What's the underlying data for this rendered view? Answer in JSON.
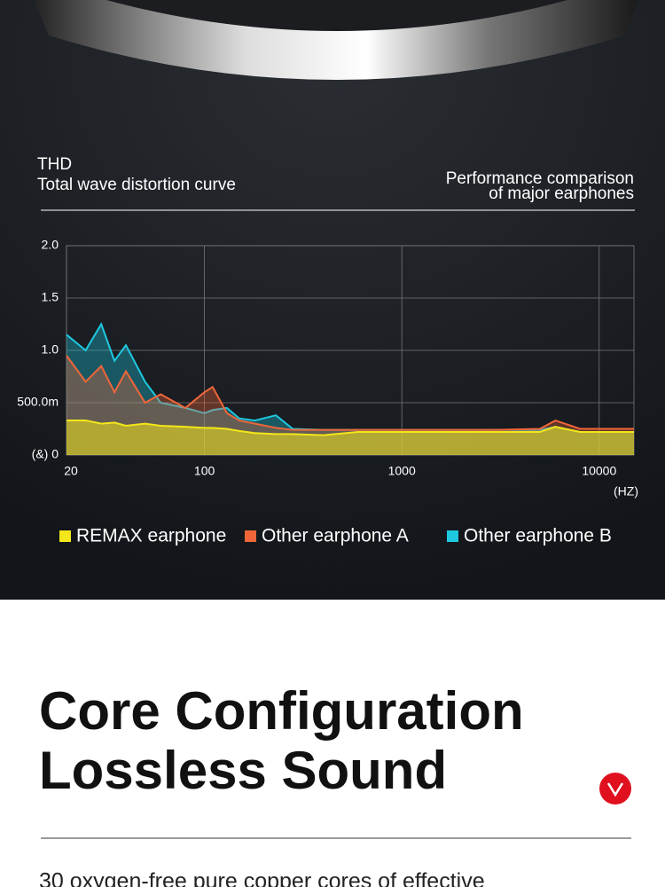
{
  "header": {
    "label": "THD",
    "title": "Total wave distortion curve",
    "note_line1": "Performance comparison",
    "note_line2": "of major earphones"
  },
  "chart_data": {
    "type": "line",
    "area": true,
    "xscale": "log",
    "grid": true,
    "xlim": [
      20,
      15000
    ],
    "ylim": [
      0,
      2
    ],
    "xticks": [
      20,
      100,
      1000,
      10000
    ],
    "yticks": [
      {
        "value": 0,
        "label": "(&) 0"
      },
      {
        "value": 0.5,
        "label": "500.0m"
      },
      {
        "value": 1,
        "label": "1.0"
      },
      1.5,
      {
        "value": 2,
        "label": "2.0"
      }
    ],
    "x_label": "(HZ)",
    "x": [
      20,
      25,
      30,
      35,
      40,
      50,
      60,
      80,
      100,
      110,
      130,
      150,
      180,
      230,
      280,
      400,
      600,
      1000,
      3000,
      5000,
      6000,
      8000,
      15000
    ],
    "series": [
      {
        "name": "REMAX earphone",
        "color": "#f3e61a",
        "values": [
          0.33,
          0.33,
          0.3,
          0.31,
          0.28,
          0.3,
          0.28,
          0.27,
          0.26,
          0.26,
          0.25,
          0.23,
          0.21,
          0.2,
          0.2,
          0.19,
          0.22,
          0.22,
          0.22,
          0.22,
          0.27,
          0.22,
          0.22
        ]
      },
      {
        "name": "Other earphone A",
        "color": "#f0663a",
        "values": [
          0.95,
          0.7,
          0.85,
          0.6,
          0.8,
          0.5,
          0.58,
          0.45,
          0.6,
          0.65,
          0.4,
          0.33,
          0.3,
          0.26,
          0.24,
          0.24,
          0.24,
          0.24,
          0.24,
          0.25,
          0.33,
          0.25,
          0.25
        ]
      },
      {
        "name": "Other earphone B",
        "color": "#1ec8e0",
        "values": [
          1.15,
          1.0,
          1.25,
          0.9,
          1.05,
          0.7,
          0.5,
          0.45,
          0.4,
          0.43,
          0.45,
          0.35,
          0.33,
          0.38,
          0.25,
          0.24,
          0.24,
          0.24,
          0.24,
          0.24,
          0.27,
          0.22,
          0.22
        ]
      }
    ]
  },
  "section": {
    "title_line1": "Core Configuration",
    "title_line2": "Lossless Sound",
    "body": "30 oxygen-free pure copper cores of effective"
  }
}
